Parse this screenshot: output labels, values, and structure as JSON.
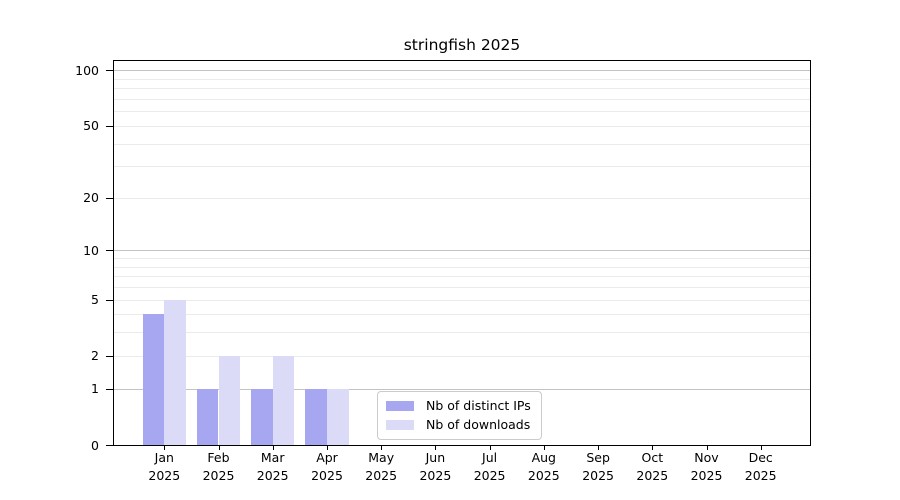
{
  "chart_data": {
    "type": "bar",
    "title": "stringfish 2025",
    "categories": [
      {
        "month": "Jan",
        "year": "2025"
      },
      {
        "month": "Feb",
        "year": "2025"
      },
      {
        "month": "Mar",
        "year": "2025"
      },
      {
        "month": "Apr",
        "year": "2025"
      },
      {
        "month": "May",
        "year": "2025"
      },
      {
        "month": "Jun",
        "year": "2025"
      },
      {
        "month": "Jul",
        "year": "2025"
      },
      {
        "month": "Aug",
        "year": "2025"
      },
      {
        "month": "Sep",
        "year": "2025"
      },
      {
        "month": "Oct",
        "year": "2025"
      },
      {
        "month": "Nov",
        "year": "2025"
      },
      {
        "month": "Dec",
        "year": "2025"
      }
    ],
    "series": [
      {
        "name": "Nb of distinct IPs",
        "color": "#a6a6f1",
        "values": [
          4,
          1,
          1,
          1,
          0,
          0,
          0,
          0,
          0,
          0,
          0,
          0
        ]
      },
      {
        "name": "Nb of downloads",
        "color": "#dbdbf8",
        "values": [
          5,
          2,
          2,
          1,
          0,
          0,
          0,
          0,
          0,
          0,
          0,
          0
        ]
      }
    ],
    "yscale": "log1p",
    "ylim": [
      0,
      112
    ],
    "y_ticks_labeled": [
      0,
      1,
      2,
      5,
      10,
      20,
      50,
      100
    ],
    "gridlines_major": [
      1,
      10,
      100
    ],
    "gridlines_minor": [
      2,
      3,
      4,
      5,
      6,
      7,
      8,
      9,
      20,
      30,
      40,
      50,
      60,
      70,
      80,
      90
    ],
    "grid": true,
    "legend_position": "inside-bottom-center",
    "colors": {
      "frame": "#000000",
      "grid_major": "#c3c3c3",
      "grid_minor": "#ebebeb",
      "background": "#ffffff"
    }
  }
}
